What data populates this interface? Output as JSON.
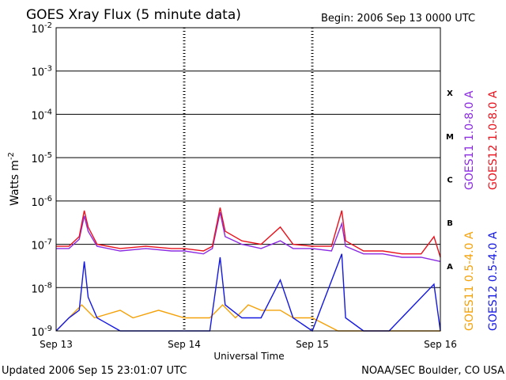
{
  "chart_data": {
    "type": "line",
    "title": "GOES Xray Flux (5 minute data)",
    "begin_label": "Begin:  2006 Sep 13 0000 UTC",
    "ylabel_main": "Watts m",
    "ylabel_exp": "-2",
    "xlabel": "Universal Time",
    "y_scale": "log",
    "y_ticks": [
      {
        "value": 0.01,
        "exp": "-2"
      },
      {
        "value": 0.001,
        "exp": "-3"
      },
      {
        "value": 0.0001,
        "exp": "-4"
      },
      {
        "value": 1e-05,
        "exp": "-5"
      },
      {
        "value": 1e-06,
        "exp": "-6"
      },
      {
        "value": 1e-07,
        "exp": "-7"
      },
      {
        "value": 1e-08,
        "exp": "-8"
      },
      {
        "value": 1e-09,
        "exp": "-9"
      }
    ],
    "ylim": [
      1e-09,
      0.01
    ],
    "xlim_days": [
      13,
      16
    ],
    "x_ticks": [
      {
        "day": 13,
        "label": "Sep 13"
      },
      {
        "day": 14,
        "label": "Sep 14"
      },
      {
        "day": 15,
        "label": "Sep 15"
      },
      {
        "day": 16,
        "label": "Sep 16"
      }
    ],
    "flare_classes": [
      {
        "label": "X",
        "value": 0.0001
      },
      {
        "label": "M",
        "value": 1e-05
      },
      {
        "label": "C",
        "value": 1e-06
      },
      {
        "label": "B",
        "value": 1e-07
      },
      {
        "label": "A",
        "value": 1e-08
      }
    ],
    "series": [
      {
        "name": "GOES11 1.0-8.0 A",
        "color": "#8b2be2",
        "points": [
          [
            13.0,
            8e-08
          ],
          [
            13.1,
            8e-08
          ],
          [
            13.18,
            1.3e-07
          ],
          [
            13.22,
            4.5e-07
          ],
          [
            13.25,
            2e-07
          ],
          [
            13.32,
            9e-08
          ],
          [
            13.5,
            7e-08
          ],
          [
            13.7,
            8e-08
          ],
          [
            13.9,
            7e-08
          ],
          [
            14.0,
            7e-08
          ],
          [
            14.15,
            6e-08
          ],
          [
            14.22,
            8e-08
          ],
          [
            14.28,
            5.5e-07
          ],
          [
            14.32,
            1.5e-07
          ],
          [
            14.45,
            1e-07
          ],
          [
            14.6,
            8e-08
          ],
          [
            14.75,
            1.2e-07
          ],
          [
            14.85,
            8e-08
          ],
          [
            15.0,
            8e-08
          ],
          [
            15.15,
            7e-08
          ],
          [
            15.23,
            3e-07
          ],
          [
            15.26,
            9e-08
          ],
          [
            15.4,
            6e-08
          ],
          [
            15.55,
            6e-08
          ],
          [
            15.7,
            5e-08
          ],
          [
            15.85,
            5e-08
          ],
          [
            16.0,
            4e-08
          ]
        ]
      },
      {
        "name": "GOES12 1.0-8.0 A",
        "color": "#e8131d",
        "points": [
          [
            13.0,
            9e-08
          ],
          [
            13.1,
            9e-08
          ],
          [
            13.18,
            1.5e-07
          ],
          [
            13.22,
            6e-07
          ],
          [
            13.25,
            2.5e-07
          ],
          [
            13.32,
            1e-07
          ],
          [
            13.5,
            8e-08
          ],
          [
            13.7,
            9e-08
          ],
          [
            13.9,
            8e-08
          ],
          [
            14.0,
            8e-08
          ],
          [
            14.15,
            7e-08
          ],
          [
            14.22,
            9e-08
          ],
          [
            14.28,
            7e-07
          ],
          [
            14.32,
            2e-07
          ],
          [
            14.45,
            1.2e-07
          ],
          [
            14.6,
            1e-07
          ],
          [
            14.75,
            2.5e-07
          ],
          [
            14.85,
            1e-07
          ],
          [
            15.0,
            9e-08
          ],
          [
            15.15,
            9e-08
          ],
          [
            15.23,
            6e-07
          ],
          [
            15.26,
            1.2e-07
          ],
          [
            15.4,
            7e-08
          ],
          [
            15.55,
            7e-08
          ],
          [
            15.7,
            6e-08
          ],
          [
            15.85,
            6e-08
          ],
          [
            15.95,
            1.5e-07
          ],
          [
            16.0,
            5e-08
          ]
        ]
      },
      {
        "name": "GOES11 0.5-4.0 A",
        "color": "#f4a20a",
        "points": [
          [
            13.0,
            1e-09
          ],
          [
            13.1,
            2e-09
          ],
          [
            13.2,
            4e-09
          ],
          [
            13.3,
            2e-09
          ],
          [
            13.5,
            3e-09
          ],
          [
            13.6,
            2e-09
          ],
          [
            13.8,
            3e-09
          ],
          [
            14.0,
            2e-09
          ],
          [
            14.2,
            2e-09
          ],
          [
            14.3,
            4e-09
          ],
          [
            14.4,
            2e-09
          ],
          [
            14.5,
            4e-09
          ],
          [
            14.6,
            3e-09
          ],
          [
            14.75,
            3e-09
          ],
          [
            14.85,
            2e-09
          ],
          [
            15.0,
            2e-09
          ],
          [
            15.2,
            1e-09
          ],
          [
            15.5,
            1e-09
          ],
          [
            15.8,
            1e-09
          ],
          [
            16.0,
            1e-09
          ]
        ]
      },
      {
        "name": "GOES12 0.5-4.0 A",
        "color": "#1418e0",
        "points": [
          [
            13.0,
            1e-09
          ],
          [
            13.1,
            2e-09
          ],
          [
            13.18,
            3e-09
          ],
          [
            13.22,
            4e-08
          ],
          [
            13.25,
            6e-09
          ],
          [
            13.32,
            2e-09
          ],
          [
            13.5,
            1e-09
          ],
          [
            13.8,
            1e-09
          ],
          [
            14.0,
            1e-09
          ],
          [
            14.2,
            1e-09
          ],
          [
            14.28,
            5e-08
          ],
          [
            14.32,
            4e-09
          ],
          [
            14.45,
            2e-09
          ],
          [
            14.6,
            2e-09
          ],
          [
            14.75,
            1.5e-08
          ],
          [
            14.85,
            2e-09
          ],
          [
            15.0,
            1e-09
          ],
          [
            15.23,
            6e-08
          ],
          [
            15.26,
            2e-09
          ],
          [
            15.4,
            1e-09
          ],
          [
            15.6,
            1e-09
          ],
          [
            15.95,
            1.2e-08
          ],
          [
            16.0,
            1e-09
          ]
        ]
      }
    ],
    "grid": "horizontal lines at each decade from 1e-7 to 1e-3; dashed vertical day separators"
  },
  "footer": {
    "updated": "Updated 2006 Sep 15 23:01:07 UTC",
    "source": "NOAA/SEC Boulder, CO USA"
  }
}
